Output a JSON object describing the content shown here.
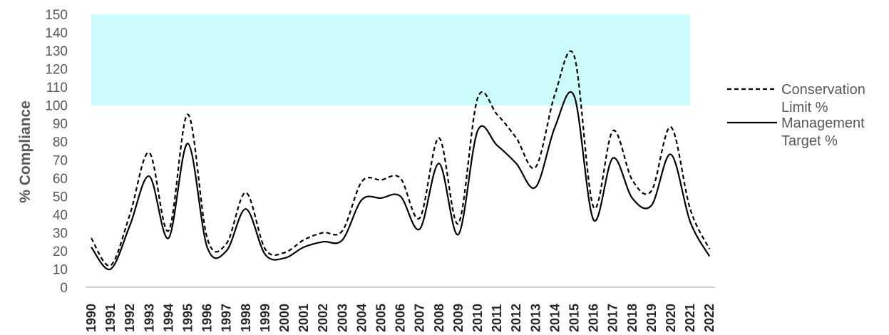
{
  "chart_data": {
    "type": "line",
    "title": "",
    "xlabel": "",
    "ylabel": "% Compliance",
    "ylim": [
      0,
      150
    ],
    "ytick_step": 10,
    "grid": false,
    "legend_position": "right",
    "shaded_band": {
      "y_from": 100,
      "y_to": 150,
      "color": "#ccfbfc",
      "x_from": "1990",
      "x_to": "2021"
    },
    "categories": [
      "1990",
      "1991",
      "1992",
      "1993",
      "1994",
      "1995",
      "1996",
      "1997",
      "1998",
      "1999",
      "2000",
      "2001",
      "2002",
      "2003",
      "2004",
      "2005",
      "2006",
      "2007",
      "2008",
      "2009",
      "2010",
      "2011",
      "2012",
      "2013",
      "2014",
      "2015",
      "2016",
      "2017",
      "2018",
      "2019",
      "2020",
      "2021",
      "2022"
    ],
    "series": [
      {
        "name": "Conservation Limit %",
        "style": "dashed",
        "color": "#000000",
        "values": [
          27,
          12,
          40,
          74,
          31,
          95,
          27,
          24,
          52,
          21,
          19,
          26,
          30,
          31,
          58,
          59,
          60,
          38,
          82,
          35,
          104,
          95,
          82,
          66,
          106,
          127,
          44,
          86,
          59,
          53,
          88,
          43,
          21
        ]
      },
      {
        "name": "Management Target %",
        "style": "solid",
        "color": "#000000",
        "values": [
          22,
          10,
          34,
          61,
          27,
          79,
          22,
          20,
          43,
          18,
          16,
          22,
          25,
          26,
          48,
          49,
          50,
          32,
          68,
          29,
          86,
          78,
          68,
          55,
          88,
          105,
          37,
          71,
          49,
          45,
          73,
          36,
          17
        ]
      }
    ],
    "legend": [
      {
        "line1": "Conservation",
        "line2": "Limit %"
      },
      {
        "line1": "Management",
        "line2": "Target %"
      }
    ]
  }
}
